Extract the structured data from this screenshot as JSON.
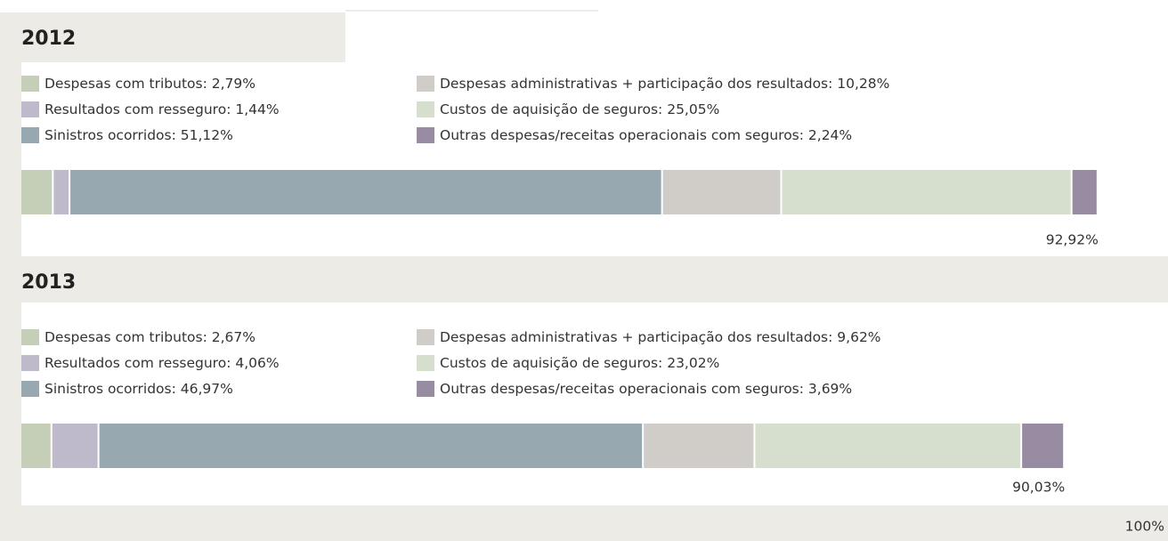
{
  "chart_data": [
    {
      "type": "stacked-bar",
      "title": "2012",
      "xlim": [
        0,
        100
      ],
      "series": [
        {
          "name": "Despesas com tributos",
          "color": "#c5cfb8",
          "values": [
            2.79
          ],
          "value_labels": [
            "2,79%"
          ]
        },
        {
          "name": "Resultados com resseguro",
          "color": "#bfbacb",
          "values": [
            1.44
          ],
          "value_labels": [
            "1,44%"
          ]
        },
        {
          "name": "Sinistros ocorridos",
          "color": "#97a8b1",
          "values": [
            51.12
          ],
          "value_labels": [
            "51,12%"
          ]
        },
        {
          "name": "Despesas administrativas + participação dos resultados",
          "color": "#d0cdc8",
          "values": [
            10.28
          ],
          "value_labels": [
            "10,28%"
          ]
        },
        {
          "name": "Custos de aquisição de seguros",
          "color": "#d6decd",
          "values": [
            25.05
          ],
          "value_labels": [
            "25,05%"
          ]
        },
        {
          "name": "Outras despesas/receitas operacionais com seguros",
          "color": "#978ca2",
          "values": [
            2.24
          ],
          "value_labels": [
            "2,24%"
          ]
        }
      ],
      "total": 92.92,
      "total_label": "92,92%"
    },
    {
      "type": "stacked-bar",
      "title": "2013",
      "xlim": [
        0,
        100
      ],
      "xticks": [
        {
          "value": 100,
          "label": "100%"
        }
      ],
      "series": [
        {
          "name": "Despesas com tributos",
          "color": "#c5cfb8",
          "values": [
            2.67
          ],
          "value_labels": [
            "2,67%"
          ]
        },
        {
          "name": "Resultados com resseguro",
          "color": "#bfbacb",
          "values": [
            4.06
          ],
          "value_labels": [
            "4,06%"
          ]
        },
        {
          "name": "Sinistros ocorridos",
          "color": "#97a8b1",
          "values": [
            46.97
          ],
          "value_labels": [
            "46,97%"
          ]
        },
        {
          "name": "Despesas administrativas + participação dos resultados",
          "color": "#d0cdc8",
          "values": [
            9.62
          ],
          "value_labels": [
            "9,62%"
          ]
        },
        {
          "name": "Custos de aquisição de seguros",
          "color": "#d6decd",
          "values": [
            23.02
          ],
          "value_labels": [
            "23,02%"
          ]
        },
        {
          "name": "Outras despesas/receitas operacionais com seguros",
          "color": "#978ca2",
          "values": [
            3.69
          ],
          "value_labels": [
            "3,69%"
          ]
        }
      ],
      "total": 90.03,
      "total_label": "90,03%"
    }
  ]
}
